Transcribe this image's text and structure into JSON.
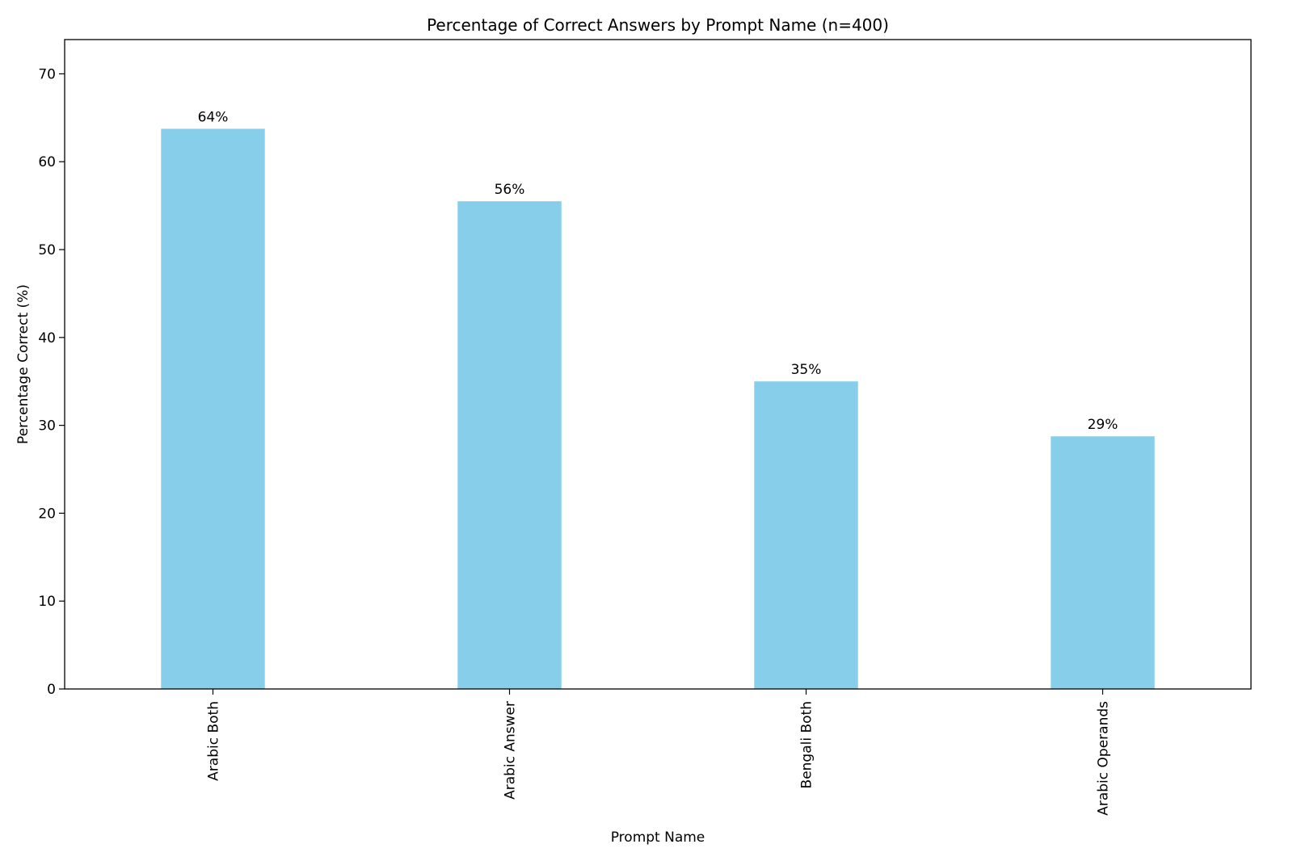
{
  "chart_data": {
    "type": "bar",
    "title": "Percentage of Correct Answers by Prompt Name (n=400)",
    "xlabel": "Prompt Name",
    "ylabel": "Percentage Correct (%)",
    "categories": [
      "Arabic Both",
      "Arabic Answer",
      "Bengali Both",
      "Arabic Operands"
    ],
    "values": [
      63.75,
      55.5,
      35.0,
      28.75
    ],
    "data_labels": [
      "64%",
      "56%",
      "35%",
      "29%"
    ],
    "ylim": [
      0,
      73.9
    ],
    "yticks": [
      0,
      10,
      20,
      30,
      40,
      50,
      60,
      70
    ],
    "grid": false,
    "legend": "none",
    "bar_color": "#87CEEB",
    "x_tick_rotation": "vertical"
  }
}
